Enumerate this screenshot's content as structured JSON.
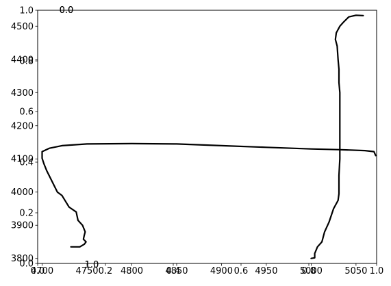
{
  "chart_data": {
    "type": "line",
    "title": "",
    "xlabel": "",
    "ylabel": "",
    "overlay_axes": {
      "xlim": [
        0.0,
        1.0
      ],
      "ylim": [
        0.0,
        1.0
      ],
      "xticks": [
        "0.0",
        "0.2",
        "0.4",
        "0.6",
        "0.8",
        "1.0"
      ],
      "yticks": [
        "0.0",
        "0.2",
        "0.4",
        "0.6",
        "0.8",
        "1.0"
      ]
    },
    "inset_axes": [
      {
        "xlim": [
          0.0,
          1.0
        ],
        "ylim": [
          0.0,
          1.0
        ],
        "xticks": [
          "0.0",
          "1.0"
        ],
        "yticks": [
          "0.0",
          "1.0"
        ]
      },
      {
        "xlim": [
          0.0,
          1.0
        ],
        "ylim": [
          0.0,
          1.0
        ],
        "xticks": [
          "0.0",
          "1.0"
        ],
        "yticks": [
          "0.0",
          "1.0"
        ]
      }
    ],
    "main_axes": {
      "xlim": [
        4695,
        5073
      ],
      "ylim": [
        3785,
        4548
      ],
      "xticks": [
        "4700",
        "4750",
        "4800",
        "4850",
        "4900",
        "4950",
        "5000",
        "5050"
      ],
      "yticks": [
        "3800",
        "3900",
        "4000",
        "4100",
        "4200",
        "4300",
        "4400",
        "4500"
      ]
    },
    "series": [
      {
        "color": "#000000",
        "points": [
          [
            4732,
            3835
          ],
          [
            4742,
            3835
          ],
          [
            4747,
            3843
          ],
          [
            4749,
            3850
          ],
          [
            4746,
            3858
          ],
          [
            4747,
            3870
          ],
          [
            4748,
            3880
          ],
          [
            4745,
            3900
          ],
          [
            4740,
            3915
          ],
          [
            4738,
            3940
          ],
          [
            4730,
            3955
          ],
          [
            4722,
            3990
          ],
          [
            4717,
            4000
          ],
          [
            4710,
            4038
          ],
          [
            4705,
            4065
          ],
          [
            4702,
            4085
          ],
          [
            4700,
            4102
          ],
          [
            4700,
            4122
          ],
          [
            4708,
            4132
          ],
          [
            4722,
            4140
          ],
          [
            4750,
            4145
          ],
          [
            4800,
            4146
          ],
          [
            4850,
            4145
          ],
          [
            4900,
            4140
          ],
          [
            4950,
            4135
          ],
          [
            5000,
            4130
          ],
          [
            5030,
            4128
          ],
          [
            5060,
            4125
          ],
          [
            5070,
            4122
          ],
          [
            5072,
            4110
          ]
        ]
      },
      {
        "color": "#000000",
        "points": [
          [
            5000,
            3800
          ],
          [
            5004,
            3802
          ],
          [
            5004,
            3815
          ],
          [
            5007,
            3835
          ],
          [
            5012,
            3850
          ],
          [
            5015,
            3880
          ],
          [
            5020,
            3910
          ],
          [
            5025,
            3950
          ],
          [
            5030,
            3975
          ],
          [
            5031,
            3995
          ],
          [
            5031,
            4050
          ],
          [
            5032,
            4100
          ],
          [
            5032,
            4200
          ],
          [
            5032,
            4300
          ],
          [
            5031,
            4330
          ],
          [
            5031,
            4370
          ],
          [
            5030,
            4400
          ],
          [
            5029,
            4440
          ],
          [
            5027,
            4460
          ],
          [
            5028,
            4480
          ],
          [
            5032,
            4500
          ],
          [
            5036,
            4512
          ],
          [
            5042,
            4528
          ],
          [
            5050,
            4533
          ],
          [
            5058,
            4532
          ]
        ]
      }
    ]
  }
}
